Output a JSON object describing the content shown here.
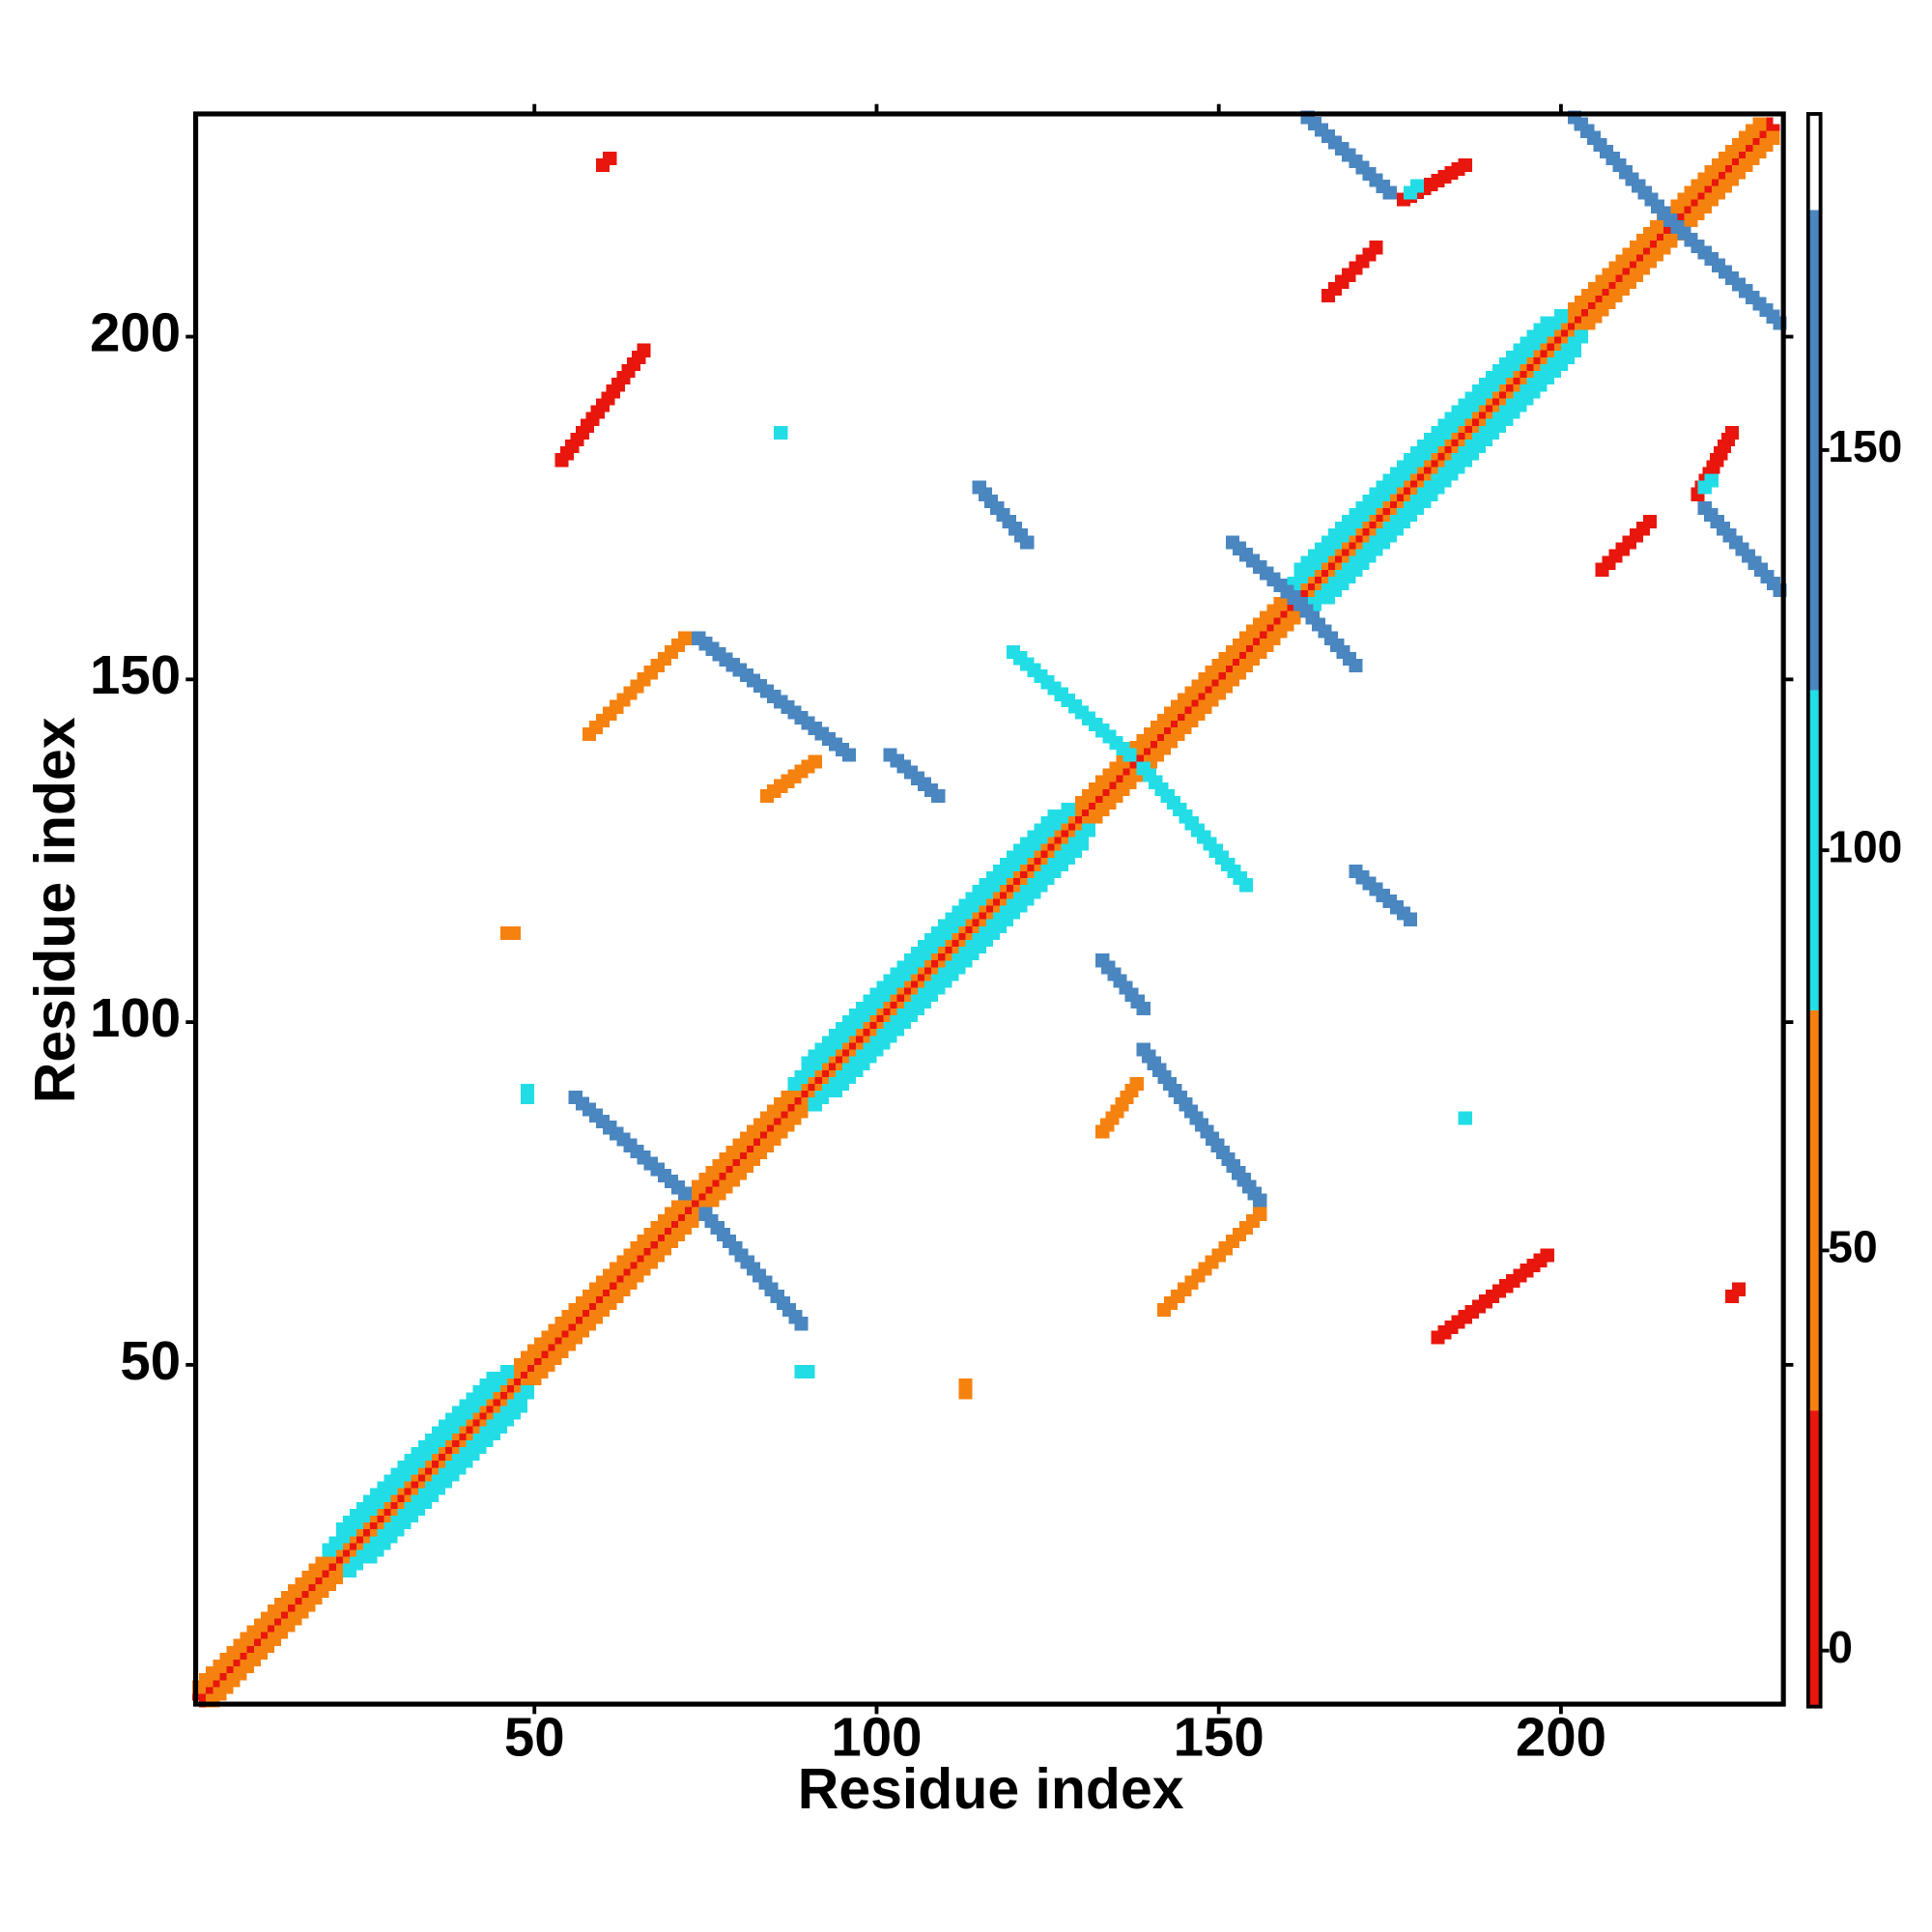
{
  "chart_data": {
    "type": "contact-map",
    "x_label": "Residue index",
    "y_label": "Residue index",
    "xlim": [
      0.5,
      232.5
    ],
    "ylim": [
      0.5,
      232.5
    ],
    "xticks": [
      50,
      100,
      150,
      200
    ],
    "yticks": [
      50,
      100,
      150,
      200
    ],
    "symmetric": true,
    "clim": [
      -7,
      192
    ],
    "cticks": [
      0,
      50,
      100,
      150
    ],
    "colorscale": [
      {
        "range": [
          -7,
          30
        ],
        "color": "#e8160c"
      },
      {
        "range": [
          30,
          80
        ],
        "color": "#f5820f"
      },
      {
        "range": [
          80,
          120
        ],
        "color": "#22dde6"
      },
      {
        "range": [
          120,
          180
        ],
        "color": "#4a86c0"
      },
      {
        "range": [
          180,
          192
        ],
        "color": "#ffffff"
      }
    ],
    "segments": [
      {
        "x": [
          1,
          230
        ],
        "y": [
          2,
          231
        ],
        "value": 15
      },
      {
        "x": [
          1,
          229
        ],
        "y": [
          3,
          231
        ],
        "value": 55
      },
      {
        "x": [
          20,
          46
        ],
        "y": [
          23,
          49
        ],
        "value": 95
      },
      {
        "x": [
          22,
          44
        ],
        "y": [
          26,
          48
        ],
        "value": 95
      },
      {
        "x": [
          88,
          128
        ],
        "y": [
          91,
          131
        ],
        "value": 95
      },
      {
        "x": [
          90,
          126
        ],
        "y": [
          94,
          130
        ],
        "value": 95
      },
      {
        "x": [
          160,
          200
        ],
        "y": [
          163,
          203
        ],
        "value": 95
      },
      {
        "x": [
          162,
          198
        ],
        "y": [
          166,
          202
        ],
        "value": 95
      },
      {
        "x": [
          56,
          72
        ],
        "y": [
          89,
          75
        ],
        "value": 130
      },
      {
        "x": [
          54,
          66
        ],
        "y": [
          182,
          198
        ],
        "value": 20
      },
      {
        "x": [
          74,
          96
        ],
        "y": [
          156,
          139
        ],
        "value": 130
      },
      {
        "x": [
          58,
          72
        ],
        "y": [
          142,
          156
        ],
        "value": 60
      },
      {
        "x": [
          102,
          109
        ],
        "y": [
          139,
          133
        ],
        "value": 130
      },
      {
        "x": [
          115,
          122
        ],
        "y": [
          178,
          170
        ],
        "value": 130
      },
      {
        "x": [
          84,
          91
        ],
        "y": [
          133,
          138
        ],
        "value": 50
      },
      {
        "x": [
          120,
          137
        ],
        "y": [
          154,
          139
        ],
        "value": 120
      },
      {
        "x": [
          152,
          162
        ],
        "y": [
          170,
          161
        ],
        "value": 130
      },
      {
        "x": [
          163,
          175
        ],
        "y": [
          232,
          221
        ],
        "value": 130
      },
      {
        "x": [
          202,
          216
        ],
        "y": [
          232,
          217
        ],
        "value": 130
      },
      {
        "x": [
          166,
          173
        ],
        "y": [
          206,
          213
        ],
        "value": 20
      },
      {
        "x": [
          177,
          186
        ],
        "y": [
          220,
          225
        ],
        "value": 20
      },
      {
        "x": [
          178,
          179
        ],
        "y": [
          221,
          222
        ],
        "value": 95
      },
      {
        "x": [
          60,
          61
        ],
        "y": [
          225,
          226
        ],
        "value": 20
      },
      {
        "x": [
          86,
          86
        ],
        "y": [
          186,
          186
        ],
        "value": 95
      },
      {
        "x": [
          46,
          47
        ],
        "y": [
          113,
          113
        ],
        "value": 60
      },
      {
        "x": [
          49,
          49
        ],
        "y": [
          89,
          90
        ],
        "value": 95
      }
    ]
  }
}
